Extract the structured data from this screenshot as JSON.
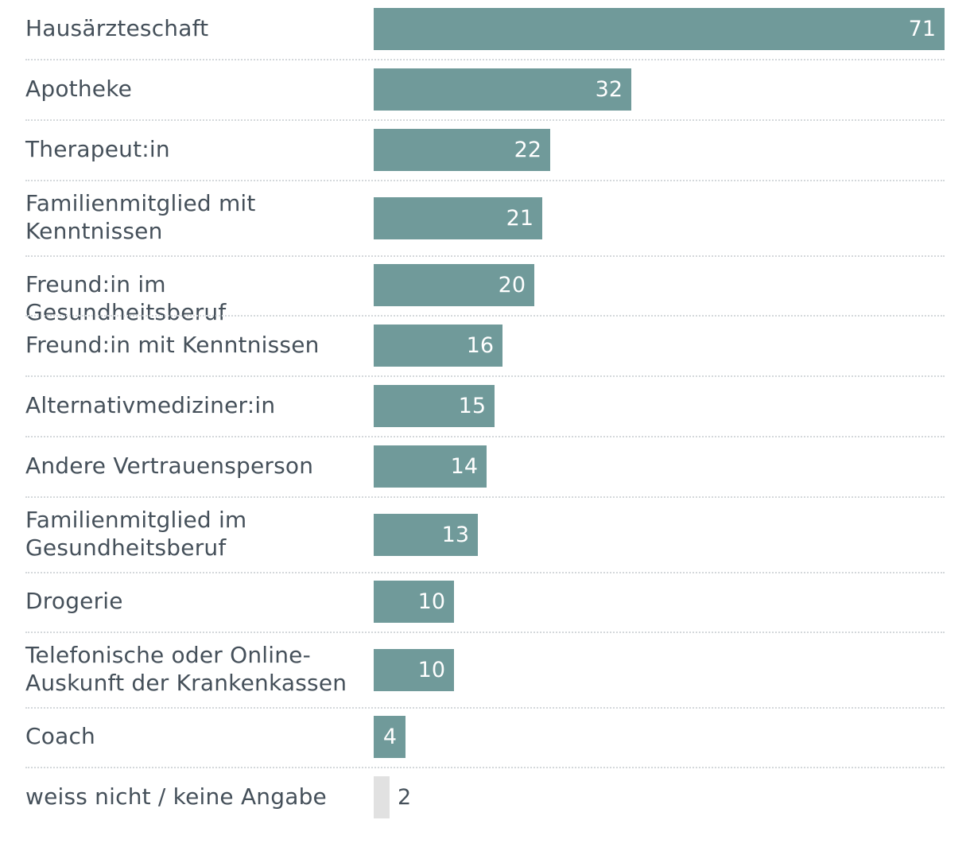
{
  "chart_data": {
    "type": "bar",
    "orientation": "horizontal",
    "title": "",
    "xlabel": "",
    "ylabel": "",
    "xlim": [
      0,
      71
    ],
    "grid": false,
    "legend": "none",
    "colors": {
      "bar": "#709a9a",
      "bar_muted": "#e1e1e1"
    },
    "categories": [
      "Hausärzteschaft",
      "Apotheke",
      "Therapeut:in",
      "Familienmitglied mit Kenntnissen",
      "Freund:in im Gesundheitsberuf",
      "Freund:in mit Kenntnissen",
      "Alternativmediziner:in",
      "Andere Vertrauensperson",
      "Familienmitglied im Gesundheitsberuf",
      "Drogerie",
      "Telefonische oder Online-Auskunft der Krankenkassen",
      "Coach",
      "weiss nicht / keine Angabe"
    ],
    "values": [
      71,
      32,
      22,
      21,
      20,
      16,
      15,
      14,
      13,
      10,
      10,
      4,
      2
    ],
    "muted": [
      false,
      false,
      false,
      false,
      false,
      false,
      false,
      false,
      false,
      false,
      false,
      false,
      true
    ]
  }
}
